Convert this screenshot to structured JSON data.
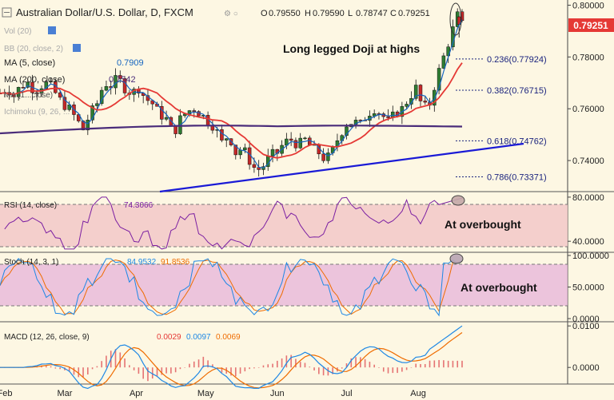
{
  "header": {
    "title": "Australian Dollar/U.S. Dollar, D, FXCM",
    "ohlc": {
      "o": "O",
      "o_val": "0.79550",
      "h": "H",
      "h_val": "0.79590",
      "l": "L",
      "l_val": "0.78747",
      "c": "C",
      "c_val": "0.79251"
    }
  },
  "legends": {
    "vol": "Vol (20)",
    "bb": "BB (20, close, 2)",
    "ma5": "MA (5, close)",
    "ma5_val": "0.7909",
    "ma200": "MA (200, close)",
    "ma200_val": "0.7542",
    "ma_hidden": "MA (1...close)",
    "ichimoku": "Ichimoku (9, 26, ...",
    "rsi": "RSI (14, close)",
    "rsi_val": "74.3066",
    "stoch": "Stoch (14, 3, 1)",
    "stoch_k": "84.9532",
    "stoch_d": "91.8536",
    "macd": "MACD (12, 26, close, 9)",
    "macd_hist": "0.0029",
    "macd_line": "0.0097",
    "macd_signal": "0.0069"
  },
  "annotations": {
    "doji": "Long legged Doji at highs",
    "rsi_ob": "At overbought",
    "stoch_ob": "At overbought"
  },
  "fib_levels": [
    {
      "label": "0.236(0.77924)",
      "value": 0.77924
    },
    {
      "label": "0.382(0.76715)",
      "value": 0.76715
    },
    {
      "label": "0.618(0.74762)",
      "value": 0.74762
    },
    {
      "label": "0.786(0.73371)",
      "value": 0.73371
    }
  ],
  "price_axis": {
    "ticks": [
      "0.80000",
      "0.78000",
      "0.76000",
      "0.74000"
    ],
    "tick_values": [
      0.8,
      0.78,
      0.76,
      0.74
    ],
    "last_price": "0.79251",
    "last_value": 0.79251
  },
  "rsi_axis": {
    "ticks": [
      "80.0000",
      "40.0000"
    ],
    "tick_values": [
      80,
      40
    ]
  },
  "stoch_axis": {
    "ticks": [
      "100.0000",
      "50.0000",
      "0.0000"
    ],
    "tick_values": [
      100,
      50,
      0
    ]
  },
  "macd_axis": {
    "ticks": [
      "0.0100",
      "0.0000"
    ],
    "tick_values": [
      0.01,
      0.0
    ]
  },
  "x_axis": {
    "labels": [
      "Feb",
      "Mar",
      "Apr",
      "May",
      "Jun",
      "Jul",
      "Aug"
    ]
  },
  "colors": {
    "background": "#fdf7e3",
    "bull": "#2e7d32",
    "bear": "#c62828",
    "ma5": "#1565c0",
    "ma_red": "#e53935",
    "ma200": "#4a2c7a",
    "trendline": "#1a1ad6",
    "rsi_line": "#7b1fa2",
    "band": "#f2c8c8",
    "stoch_band": "#e6b3d9",
    "stoch_k": "#1e88e5",
    "stoch_d": "#ef6c00",
    "macd_line": "#1e88e5",
    "macd_signal": "#ef6c00",
    "macd_hist": "#e57373",
    "last_price_tag": "#e53935"
  },
  "chart_data": [
    {
      "type": "candlestick",
      "title": "Australian Dollar/U.S. Dollar, D, FXCM",
      "ylim": [
        0.728,
        0.802
      ],
      "x_range_days": [
        0,
        200
      ],
      "candles_sampled_daily": true,
      "close_path": [
        [
          0,
          0.766
        ],
        [
          3,
          0.768
        ],
        [
          6,
          0.765
        ],
        [
          9,
          0.769
        ],
        [
          12,
          0.77
        ],
        [
          15,
          0.767
        ],
        [
          18,
          0.769
        ],
        [
          21,
          0.77
        ],
        [
          24,
          0.766
        ],
        [
          27,
          0.762
        ],
        [
          30,
          0.76
        ],
        [
          33,
          0.756
        ],
        [
          36,
          0.752
        ],
        [
          39,
          0.758
        ],
        [
          42,
          0.762
        ],
        [
          45,
          0.77
        ],
        [
          48,
          0.769
        ],
        [
          51,
          0.772
        ],
        [
          54,
          0.768
        ],
        [
          57,
          0.766
        ],
        [
          60,
          0.768
        ],
        [
          63,
          0.764
        ],
        [
          66,
          0.762
        ],
        [
          69,
          0.758
        ],
        [
          72,
          0.756
        ],
        [
          75,
          0.75
        ],
        [
          78,
          0.756
        ],
        [
          81,
          0.759
        ],
        [
          84,
          0.76
        ],
        [
          87,
          0.758
        ],
        [
          90,
          0.755
        ],
        [
          93,
          0.753
        ],
        [
          96,
          0.747
        ],
        [
          99,
          0.75
        ],
        [
          102,
          0.743
        ],
        [
          105,
          0.745
        ],
        [
          108,
          0.74
        ],
        [
          111,
          0.736
        ],
        [
          114,
          0.738
        ],
        [
          117,
          0.742
        ],
        [
          120,
          0.743
        ],
        [
          123,
          0.747
        ],
        [
          126,
          0.748
        ],
        [
          129,
          0.746
        ],
        [
          132,
          0.748
        ],
        [
          135,
          0.745
        ],
        [
          138,
          0.743
        ],
        [
          141,
          0.74
        ],
        [
          144,
          0.744
        ],
        [
          147,
          0.75
        ],
        [
          150,
          0.754
        ],
        [
          153,
          0.755
        ],
        [
          156,
          0.754
        ],
        [
          159,
          0.758
        ],
        [
          162,
          0.76
        ],
        [
          165,
          0.758
        ],
        [
          168,
          0.755
        ],
        [
          171,
          0.758
        ],
        [
          174,
          0.76
        ],
        [
          177,
          0.764
        ],
        [
          180,
          0.768
        ],
        [
          183,
          0.76
        ],
        [
          186,
          0.762
        ],
        [
          189,
          0.772
        ],
        [
          192,
          0.78
        ],
        [
          195,
          0.788
        ],
        [
          198,
          0.796
        ],
        [
          200,
          0.7925
        ]
      ],
      "series": [
        {
          "name": "MA (5, close)",
          "last": 0.7909
        },
        {
          "name": "MA (200, close)",
          "last": 0.7542
        }
      ],
      "annotations": [
        "Long legged Doji at highs"
      ]
    },
    {
      "type": "line",
      "title": "RSI (14, close)",
      "ylim": [
        30,
        85
      ],
      "last": 74.3066,
      "overbought": 70,
      "oversold": 30
    },
    {
      "type": "line",
      "title": "Stoch (14, 3, 1)",
      "ylim": [
        -5,
        105
      ],
      "series": [
        {
          "name": "%K",
          "last": 84.9532
        },
        {
          "name": "%D",
          "last": 91.8536
        }
      ],
      "overbought": 80,
      "oversold": 20
    },
    {
      "type": "bar",
      "title": "MACD (12, 26, close, 9)",
      "ylim": [
        -0.004,
        0.011
      ],
      "series": [
        {
          "name": "Histogram",
          "last": 0.0029
        },
        {
          "name": "MACD",
          "last": 0.0097
        },
        {
          "name": "Signal",
          "last": 0.0069
        }
      ]
    }
  ]
}
